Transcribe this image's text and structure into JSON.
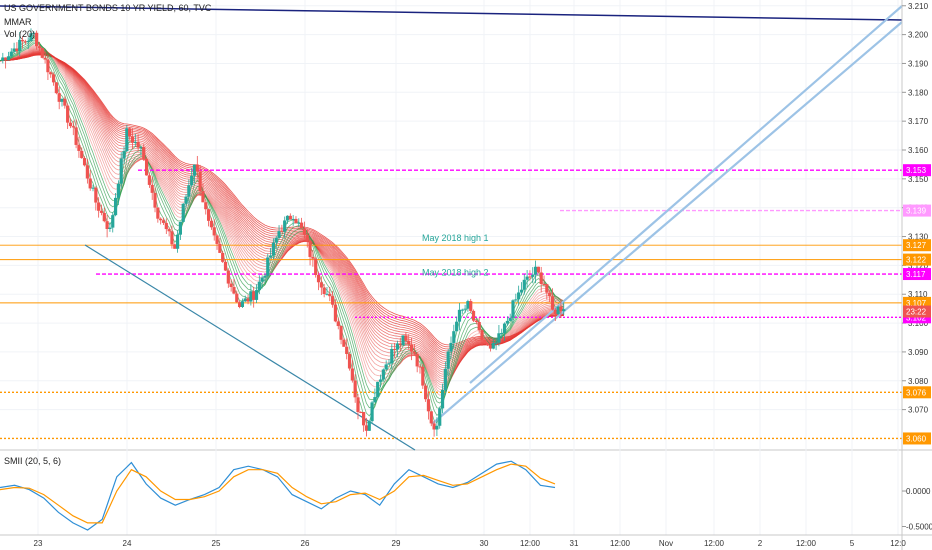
{
  "header": {
    "title": "US GOVERNMENT BONDS 10 YR YIELD, 60, TVC",
    "indicator1": "MMAR",
    "indicator2": "Vol (20)"
  },
  "colors": {
    "background": "#ffffff",
    "candle_up": "#26a69a",
    "candle_down": "#ef5350",
    "ribbon_fast": "#2e9b4a",
    "ribbon_slow": "#e53935",
    "magenta": "#ff00ff",
    "orange": "#ff9800",
    "channel": "#9dc3e6",
    "trend_blue": "#1a237e",
    "trend_teal": "#3a87a8",
    "smi_blue": "#2f8fd6",
    "smi_orange": "#ff9800"
  },
  "chart_data": [
    {
      "type": "line",
      "title": "US GOVERNMENT BONDS 10 YR YIELD, 60, TVC",
      "x_ticks": [
        "23",
        "24",
        "25",
        "26",
        "29",
        "30",
        "12:00",
        "31",
        "12:00",
        "Nov",
        "12:00",
        "2",
        "12:00",
        "5",
        "12:0"
      ],
      "y_ticks": [
        "3.210",
        "3.200",
        "3.190",
        "3.180",
        "3.170",
        "3.160",
        "3.150",
        "3.140",
        "3.130",
        "3.120",
        "3.110",
        "3.100",
        "3.090",
        "3.080",
        "3.070"
      ],
      "ylim": [
        3.056,
        3.212
      ],
      "price_path": [
        [
          0,
          3.191
        ],
        [
          6,
          3.196
        ],
        [
          12,
          3.2
        ],
        [
          18,
          3.186
        ],
        [
          26,
          3.166
        ],
        [
          34,
          3.142
        ],
        [
          39,
          3.132
        ],
        [
          42,
          3.15
        ],
        [
          45,
          3.166
        ],
        [
          50,
          3.16
        ],
        [
          56,
          3.138
        ],
        [
          62,
          3.126
        ],
        [
          65,
          3.14
        ],
        [
          69,
          3.156
        ],
        [
          74,
          3.134
        ],
        [
          80,
          3.118
        ],
        [
          85,
          3.106
        ],
        [
          90,
          3.11
        ],
        [
          94,
          3.118
        ],
        [
          99,
          3.132
        ],
        [
          104,
          3.138
        ],
        [
          108,
          3.13
        ],
        [
          112,
          3.118
        ],
        [
          117,
          3.108
        ],
        [
          121,
          3.096
        ],
        [
          124,
          3.086
        ],
        [
          127,
          3.07
        ],
        [
          130,
          3.064
        ],
        [
          134,
          3.08
        ],
        [
          139,
          3.09
        ],
        [
          143,
          3.094
        ],
        [
          147,
          3.09
        ],
        [
          150,
          3.08
        ],
        [
          153,
          3.066
        ],
        [
          155,
          3.064
        ],
        [
          158,
          3.084
        ],
        [
          162,
          3.102
        ],
        [
          166,
          3.106
        ],
        [
          170,
          3.096
        ],
        [
          174,
          3.09
        ],
        [
          178,
          3.096
        ],
        [
          182,
          3.106
        ],
        [
          186,
          3.114
        ],
        [
          190,
          3.118
        ],
        [
          193,
          3.114
        ],
        [
          196,
          3.104
        ],
        [
          200,
          3.106
        ]
      ],
      "horizontal_levels": [
        {
          "value": 3.153,
          "label": "3.153",
          "color": "#ff00ff",
          "style": "dashed"
        },
        {
          "value": 3.139,
          "label": "3.139",
          "color": "#ff99ff",
          "style": "dashed"
        },
        {
          "value": 3.127,
          "label": "3.127",
          "color": "#ff9800",
          "style": "solid"
        },
        {
          "value": 3.122,
          "label": "3.122",
          "color": "#ff9800",
          "style": "solid"
        },
        {
          "value": 3.117,
          "label": "3.117",
          "color": "#ff00ff",
          "style": "dashed"
        },
        {
          "value": 3.107,
          "label": "3.107",
          "color": "#ff9800",
          "style": "solid"
        },
        {
          "value": 3.102,
          "label": "3.102",
          "color": "#ff00ff",
          "style": "dotted"
        },
        {
          "value": 3.076,
          "label": "3.076",
          "color": "#ff9800",
          "style": "dotted"
        },
        {
          "value": 3.06,
          "label": "3.060",
          "color": "#ff9800",
          "style": "dotted"
        }
      ],
      "current_tag": {
        "value": 3.104,
        "label": "23:22",
        "color": "#ef5350"
      },
      "annotations": [
        {
          "text": "May 2018 high 1",
          "value": 3.127
        },
        {
          "text": "May 2018 high 2",
          "value": 3.12
        }
      ],
      "grid": true,
      "legend": "none"
    },
    {
      "type": "line",
      "title": "SMII (20, 5, 6)",
      "y_ticks": [
        "0.0000",
        "-0.5000"
      ],
      "ylim": [
        -0.62,
        0.55
      ],
      "series": [
        {
          "color": "#2f8fd6",
          "values": [
            0.05,
            0.08,
            0.02,
            -0.1,
            -0.3,
            -0.45,
            -0.55,
            -0.4,
            0.2,
            0.4,
            0.1,
            -0.1,
            -0.2,
            -0.12,
            -0.05,
            0.05,
            0.3,
            0.35,
            0.3,
            0.2,
            -0.05,
            -0.15,
            -0.25,
            -0.1,
            0.0,
            -0.05,
            -0.2,
            0.1,
            0.3,
            0.2,
            0.1,
            0.05,
            0.12,
            0.25,
            0.38,
            0.42,
            0.3,
            0.08,
            0.05
          ]
        },
        {
          "color": "#ff9800",
          "values": [
            0.02,
            0.05,
            0.04,
            -0.05,
            -0.2,
            -0.35,
            -0.45,
            -0.45,
            0.0,
            0.3,
            0.2,
            0.0,
            -0.12,
            -0.12,
            -0.08,
            0.0,
            0.2,
            0.3,
            0.3,
            0.25,
            0.05,
            -0.08,
            -0.18,
            -0.15,
            -0.05,
            -0.03,
            -0.12,
            0.0,
            0.2,
            0.22,
            0.15,
            0.08,
            0.1,
            0.2,
            0.3,
            0.38,
            0.35,
            0.18,
            0.1
          ]
        }
      ]
    }
  ]
}
